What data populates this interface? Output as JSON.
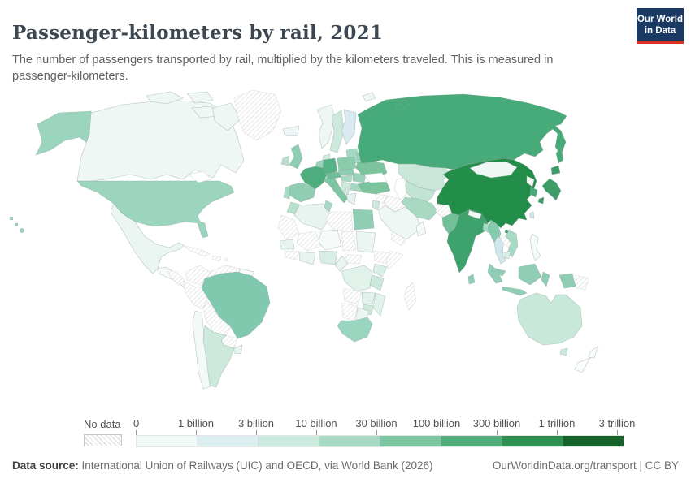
{
  "header": {
    "title": "Passenger-kilometers by rail, 2021",
    "subtitle": "The number of passengers transported by rail, multiplied by the kilometers traveled. This is measured in passenger-kilometers.",
    "logo": {
      "line1": "Our World",
      "line2": "in Data",
      "bg_color": "#1a3a63",
      "accent_color": "#dc3327"
    }
  },
  "legend": {
    "no_data_label": "No data",
    "tick_labels": [
      "0",
      "1 billion",
      "3 billion",
      "10 billion",
      "30 billion",
      "100 billion",
      "300 billion",
      "1 trillion",
      "3 trillion"
    ],
    "colors": [
      "#f2faf7",
      "#ddeef1",
      "#cdeade",
      "#a6dac5",
      "#7cc7a2",
      "#4fae7c",
      "#2f9151",
      "#14632b"
    ]
  },
  "footer": {
    "source_label": "Data source:",
    "source_text": " International Union of Railways (UIC) and OECD, via World Bank (2026)",
    "link_text": "OurWorldinData.org/transport | CC BY"
  },
  "chart_data": {
    "type": "choropleth",
    "title": "Passenger-kilometers by rail",
    "year": 2021,
    "unit": "passenger-kilometers",
    "scale_bins": [
      "0–1 billion",
      "1–3 billion",
      "3–10 billion",
      "10–30 billion",
      "30–100 billion",
      "100–300 billion",
      "300 billion–1 trillion",
      "1–3 trillion"
    ],
    "countries": [
      {
        "id": "united-states",
        "label": "United States",
        "color": "#9bd5bd",
        "category": "10–30 billion"
      },
      {
        "id": "canada",
        "label": "Canada",
        "color": "#eef7f3",
        "category": "1–3 billion"
      },
      {
        "id": "greenland",
        "label": "Greenland",
        "category": "No data"
      },
      {
        "id": "mexico",
        "label": "Mexico",
        "color": "#ebf5f1",
        "category": "0–1 billion"
      },
      {
        "id": "central-america",
        "label": "Central America",
        "color": "#f4faf8",
        "category": "0–1 billion"
      },
      {
        "id": "honduras-nicaragua",
        "label": "Honduras & Nicaragua",
        "category": "No data"
      },
      {
        "id": "cuba",
        "label": "Cuba",
        "category": "No data"
      },
      {
        "id": "hispaniola",
        "label": "Haiti & Dominican Republic",
        "category": "No data"
      },
      {
        "id": "colombia",
        "label": "Colombia",
        "category": "No data"
      },
      {
        "id": "venezuela",
        "label": "Venezuela",
        "category": "No data"
      },
      {
        "id": "guyanas",
        "label": "Guyana & Suriname",
        "color": "#f6fbf9",
        "category": "0–1 billion"
      },
      {
        "id": "peru",
        "label": "Peru",
        "category": "No data"
      },
      {
        "id": "brazil",
        "label": "Brazil",
        "color": "#80c9ae",
        "category": "30–100 billion"
      },
      {
        "id": "bolivia",
        "label": "Bolivia",
        "category": "No data"
      },
      {
        "id": "paraguay",
        "label": "Paraguay",
        "category": "No data"
      },
      {
        "id": "chile",
        "label": "Chile",
        "color": "#f2f9f6",
        "category": "0–1 billion"
      },
      {
        "id": "argentina",
        "label": "Argentina",
        "color": "#cde9dc",
        "category": "3–10 billion"
      },
      {
        "id": "uruguay",
        "label": "Uruguay",
        "color": "#e8f4ef",
        "category": "0–1 billion"
      },
      {
        "id": "iceland",
        "label": "Iceland",
        "color": "#eef5f6",
        "category": "0–1 billion"
      },
      {
        "id": "united-kingdom",
        "label": "United Kingdom",
        "color": "#8fceb3",
        "category": "10–30 billion"
      },
      {
        "id": "ireland",
        "label": "Ireland",
        "color": "#b9e0ce",
        "category": "1–3 billion"
      },
      {
        "id": "norway",
        "label": "Norway",
        "color": "#eef7f3",
        "category": "1–3 billion"
      },
      {
        "id": "sweden",
        "label": "Sweden",
        "color": "#cde9dc",
        "category": "3–10 billion"
      },
      {
        "id": "finland",
        "label": "Finland",
        "color": "#d9eaf0",
        "category": "3–10 billion"
      },
      {
        "id": "denmark",
        "label": "Denmark",
        "color": "#cde9dc",
        "category": "3–10 billion"
      },
      {
        "id": "baltic-states",
        "label": "Baltic states",
        "color": "#a6dac5",
        "category": "1–3 billion"
      },
      {
        "id": "poland",
        "label": "Poland",
        "color": "#8accab",
        "category": "10–30 billion"
      },
      {
        "id": "germany",
        "label": "Germany",
        "color": "#55b286",
        "category": "30–100 billion"
      },
      {
        "id": "benelux",
        "label": "Belgium & Netherlands",
        "color": "#9ad3bc",
        "category": "10–30 billion"
      },
      {
        "id": "france",
        "label": "France",
        "color": "#4fae7e",
        "category": "30–100 billion"
      },
      {
        "id": "spain",
        "label": "Spain",
        "color": "#8fceb3",
        "category": "10–30 billion"
      },
      {
        "id": "portugal",
        "label": "Portugal",
        "color": "#a6dac5",
        "category": "3–10 billion"
      },
      {
        "id": "italy",
        "label": "Italy",
        "color": "#7cc7a2",
        "category": "30–100 billion"
      },
      {
        "id": "switzerland-austria",
        "label": "Switzerland & Austria",
        "color": "#6dbd96",
        "category": "10–30 billion"
      },
      {
        "id": "czechia-slovakia",
        "label": "Czechia & Slovakia",
        "color": "#8fceb3",
        "category": "10–30 billion"
      },
      {
        "id": "hungary",
        "label": "Hungary",
        "color": "#a6dac5",
        "category": "3–10 billion"
      },
      {
        "id": "romania",
        "label": "Romania",
        "color": "#9ad3bc",
        "category": "3–10 billion"
      },
      {
        "id": "balkans",
        "label": "Western Balkans",
        "color": "#cde9dc",
        "category": "1–3 billion"
      },
      {
        "id": "bulgaria",
        "label": "Bulgaria",
        "color": "#a6dac5",
        "category": "1–3 billion"
      },
      {
        "id": "greece",
        "label": "Greece",
        "color": "#e8f1ef",
        "category": "0–1 billion"
      },
      {
        "id": "ukraine",
        "label": "Ukraine",
        "color": "#7cc49e",
        "category": "10–30 billion"
      },
      {
        "id": "belarus",
        "label": "Belarus",
        "color": "#9ad3bc",
        "category": "10–30 billion"
      },
      {
        "id": "russia",
        "label": "Russia",
        "color": "#47aa79",
        "category": "100–300 billion"
      },
      {
        "id": "kazakhstan",
        "label": "Kazakhstan",
        "color": "#c8e7d8",
        "category": "3–10 billion"
      },
      {
        "id": "uzbekistan-turkmenistan",
        "label": "Uzbekistan & Turkmenistan",
        "color": "#c2e4d4",
        "category": "3–10 billion"
      },
      {
        "id": "kyrgyzstan-tajikistan",
        "label": "Kyrgyzstan & Tajikistan",
        "color": "#a6dac5",
        "category": "1–3 billion"
      },
      {
        "id": "turkey",
        "label": "Turkey",
        "color": "#7cc49e",
        "category": "10–30 billion"
      },
      {
        "id": "syria",
        "label": "Syria",
        "category": "No data"
      },
      {
        "id": "israel-jordan",
        "label": "Israel & Jordan",
        "color": "#cde9dc",
        "category": "1–3 billion"
      },
      {
        "id": "iraq",
        "label": "Iraq",
        "category": "No data"
      },
      {
        "id": "saudi-arabia",
        "label": "Saudi Arabia",
        "color": "#eef7f3",
        "category": "0–1 billion"
      },
      {
        "id": "yemen",
        "label": "Yemen",
        "category": "No data"
      },
      {
        "id": "oman",
        "label": "Oman",
        "color": "#f4faf8",
        "category": "0–1 billion"
      },
      {
        "id": "iran",
        "label": "Iran",
        "color": "#a7d9c3",
        "category": "10–30 billion"
      },
      {
        "id": "afghanistan",
        "label": "Afghanistan",
        "category": "No data"
      },
      {
        "id": "pakistan",
        "label": "Pakistan",
        "color": "#72c09a",
        "category": "10–30 billion"
      },
      {
        "id": "india",
        "label": "India",
        "color": "#3da26c",
        "category": "300 billion–1 trillion"
      },
      {
        "id": "nepal",
        "label": "Nepal",
        "color": "#f0f8f5",
        "category": "0–1 billion"
      },
      {
        "id": "bangladesh",
        "label": "Bangladesh",
        "color": "#a6dac5",
        "category": "3–10 billion"
      },
      {
        "id": "sri-lanka",
        "label": "Sri Lanka",
        "color": "#8fceb3",
        "category": "3–10 billion"
      },
      {
        "id": "myanmar",
        "label": "Myanmar",
        "color": "#85cbad",
        "category": "10–30 billion"
      },
      {
        "id": "thailand",
        "label": "Thailand",
        "color": "#cfe7ed",
        "category": "1–3 billion"
      },
      {
        "id": "laos",
        "label": "Laos",
        "category": "No data"
      },
      {
        "id": "vietnam",
        "label": "Vietnam",
        "color": "#a6dac5",
        "category": "3–10 billion"
      },
      {
        "id": "cambodia",
        "label": "Cambodia",
        "color": "#d9efe6",
        "category": "1–3 billion"
      },
      {
        "id": "malaysia",
        "label": "Malaysia",
        "color": "#8fceb3",
        "category": "3–10 billion"
      },
      {
        "id": "china",
        "label": "China",
        "color": "#238e4a",
        "category": "300 billion–1 trillion"
      },
      {
        "id": "mongolia",
        "label": "Mongolia",
        "color": "#eef7f4",
        "category": "0–1 billion"
      },
      {
        "id": "north-korea",
        "label": "North Korea",
        "category": "No data"
      },
      {
        "id": "south-korea",
        "label": "South Korea",
        "color": "#47a878",
        "category": "100–300 billion"
      },
      {
        "id": "japan",
        "label": "Japan",
        "color": "#3f9e68",
        "category": "100–300 billion"
      },
      {
        "id": "taiwan",
        "label": "Taiwan",
        "color": "#cfe7ed",
        "category": "1–3 billion"
      },
      {
        "id": "philippines",
        "label": "Philippines",
        "color": "#f4faf8",
        "category": "0–1 billion"
      },
      {
        "id": "indonesia",
        "label": "Indonesia",
        "color": "#8fceb4",
        "category": "10–30 billion"
      },
      {
        "id": "papua-new-guinea",
        "label": "Papua New Guinea",
        "category": "No data"
      },
      {
        "id": "australia",
        "label": "Australia",
        "color": "#c8e9da",
        "category": "3–10 billion"
      },
      {
        "id": "new-zealand",
        "label": "New Zealand",
        "color": "#fafdfc",
        "category": "0–1 billion"
      },
      {
        "id": "morocco",
        "label": "Morocco",
        "color": "#b7e0cd",
        "category": "3–10 billion"
      },
      {
        "id": "algeria",
        "label": "Algeria",
        "color": "#e8f4ef",
        "category": "1–3 billion"
      },
      {
        "id": "tunisia",
        "label": "Tunisia",
        "color": "#a6dac5",
        "category": "1–3 billion"
      },
      {
        "id": "libya",
        "label": "Libya",
        "category": "No data"
      },
      {
        "id": "egypt",
        "label": "Egypt",
        "color": "#8fceb2",
        "category": "30–100 billion"
      },
      {
        "id": "western-sahara-mauritania",
        "label": "Western Sahara & Mauritania",
        "category": "No data"
      },
      {
        "id": "mali",
        "label": "Mali",
        "category": "No data"
      },
      {
        "id": "niger",
        "label": "Niger",
        "color": "#f6fbf9",
        "category": "0–1 billion"
      },
      {
        "id": "chad",
        "label": "Chad",
        "category": "No data"
      },
      {
        "id": "sudan",
        "label": "Sudan",
        "color": "#ecf6f1",
        "category": "0–1 billion"
      },
      {
        "id": "ethiopia",
        "label": "Ethiopia",
        "category": "No data"
      },
      {
        "id": "somalia",
        "label": "Somalia",
        "category": "No data"
      },
      {
        "id": "senegal",
        "label": "Senegal",
        "color": "#e8f4ef",
        "category": "0–1 billion"
      },
      {
        "id": "guinea-region",
        "label": "Guinea region",
        "category": "No data"
      },
      {
        "id": "ivory-coast-ghana",
        "label": "Côte d'Ivoire & Ghana",
        "color": "#e8f4ef",
        "category": "0–1 billion"
      },
      {
        "id": "nigeria",
        "label": "Nigeria",
        "color": "#d9efe6",
        "category": "1–3 billion"
      },
      {
        "id": "cameroon",
        "label": "Cameroon",
        "color": "#e8f4ef",
        "category": "0–1 billion"
      },
      {
        "id": "central-african-republic",
        "label": "Central African Republic",
        "category": "No data"
      },
      {
        "id": "dr-congo",
        "label": "Democratic Republic of Congo",
        "color": "#e1f2ea",
        "category": "0–1 billion"
      },
      {
        "id": "kenya",
        "label": "Kenya",
        "color": "#d9efe6",
        "category": "1–3 billion"
      },
      {
        "id": "tanzania",
        "label": "Tanzania",
        "color": "#cde9dc",
        "category": "1–3 billion"
      },
      {
        "id": "angola",
        "label": "Angola",
        "category": "No data"
      },
      {
        "id": "zambia",
        "label": "Zambia",
        "color": "#e1f2ea",
        "category": "1–3 billion"
      },
      {
        "id": "zimbabwe",
        "label": "Zimbabwe",
        "color": "#cde9dc",
        "category": "1–3 billion"
      },
      {
        "id": "mozambique",
        "label": "Mozambique",
        "color": "#e1f2ea",
        "category": "0–1 billion"
      },
      {
        "id": "namibia",
        "label": "Namibia",
        "category": "No data"
      },
      {
        "id": "botswana",
        "label": "Botswana",
        "color": "#ecf6f1",
        "category": "0–1 billion"
      },
      {
        "id": "south-africa",
        "label": "South Africa",
        "color": "#9ad5bf",
        "category": "10–30 billion"
      },
      {
        "id": "madagascar",
        "label": "Madagascar",
        "category": "No data"
      }
    ]
  }
}
